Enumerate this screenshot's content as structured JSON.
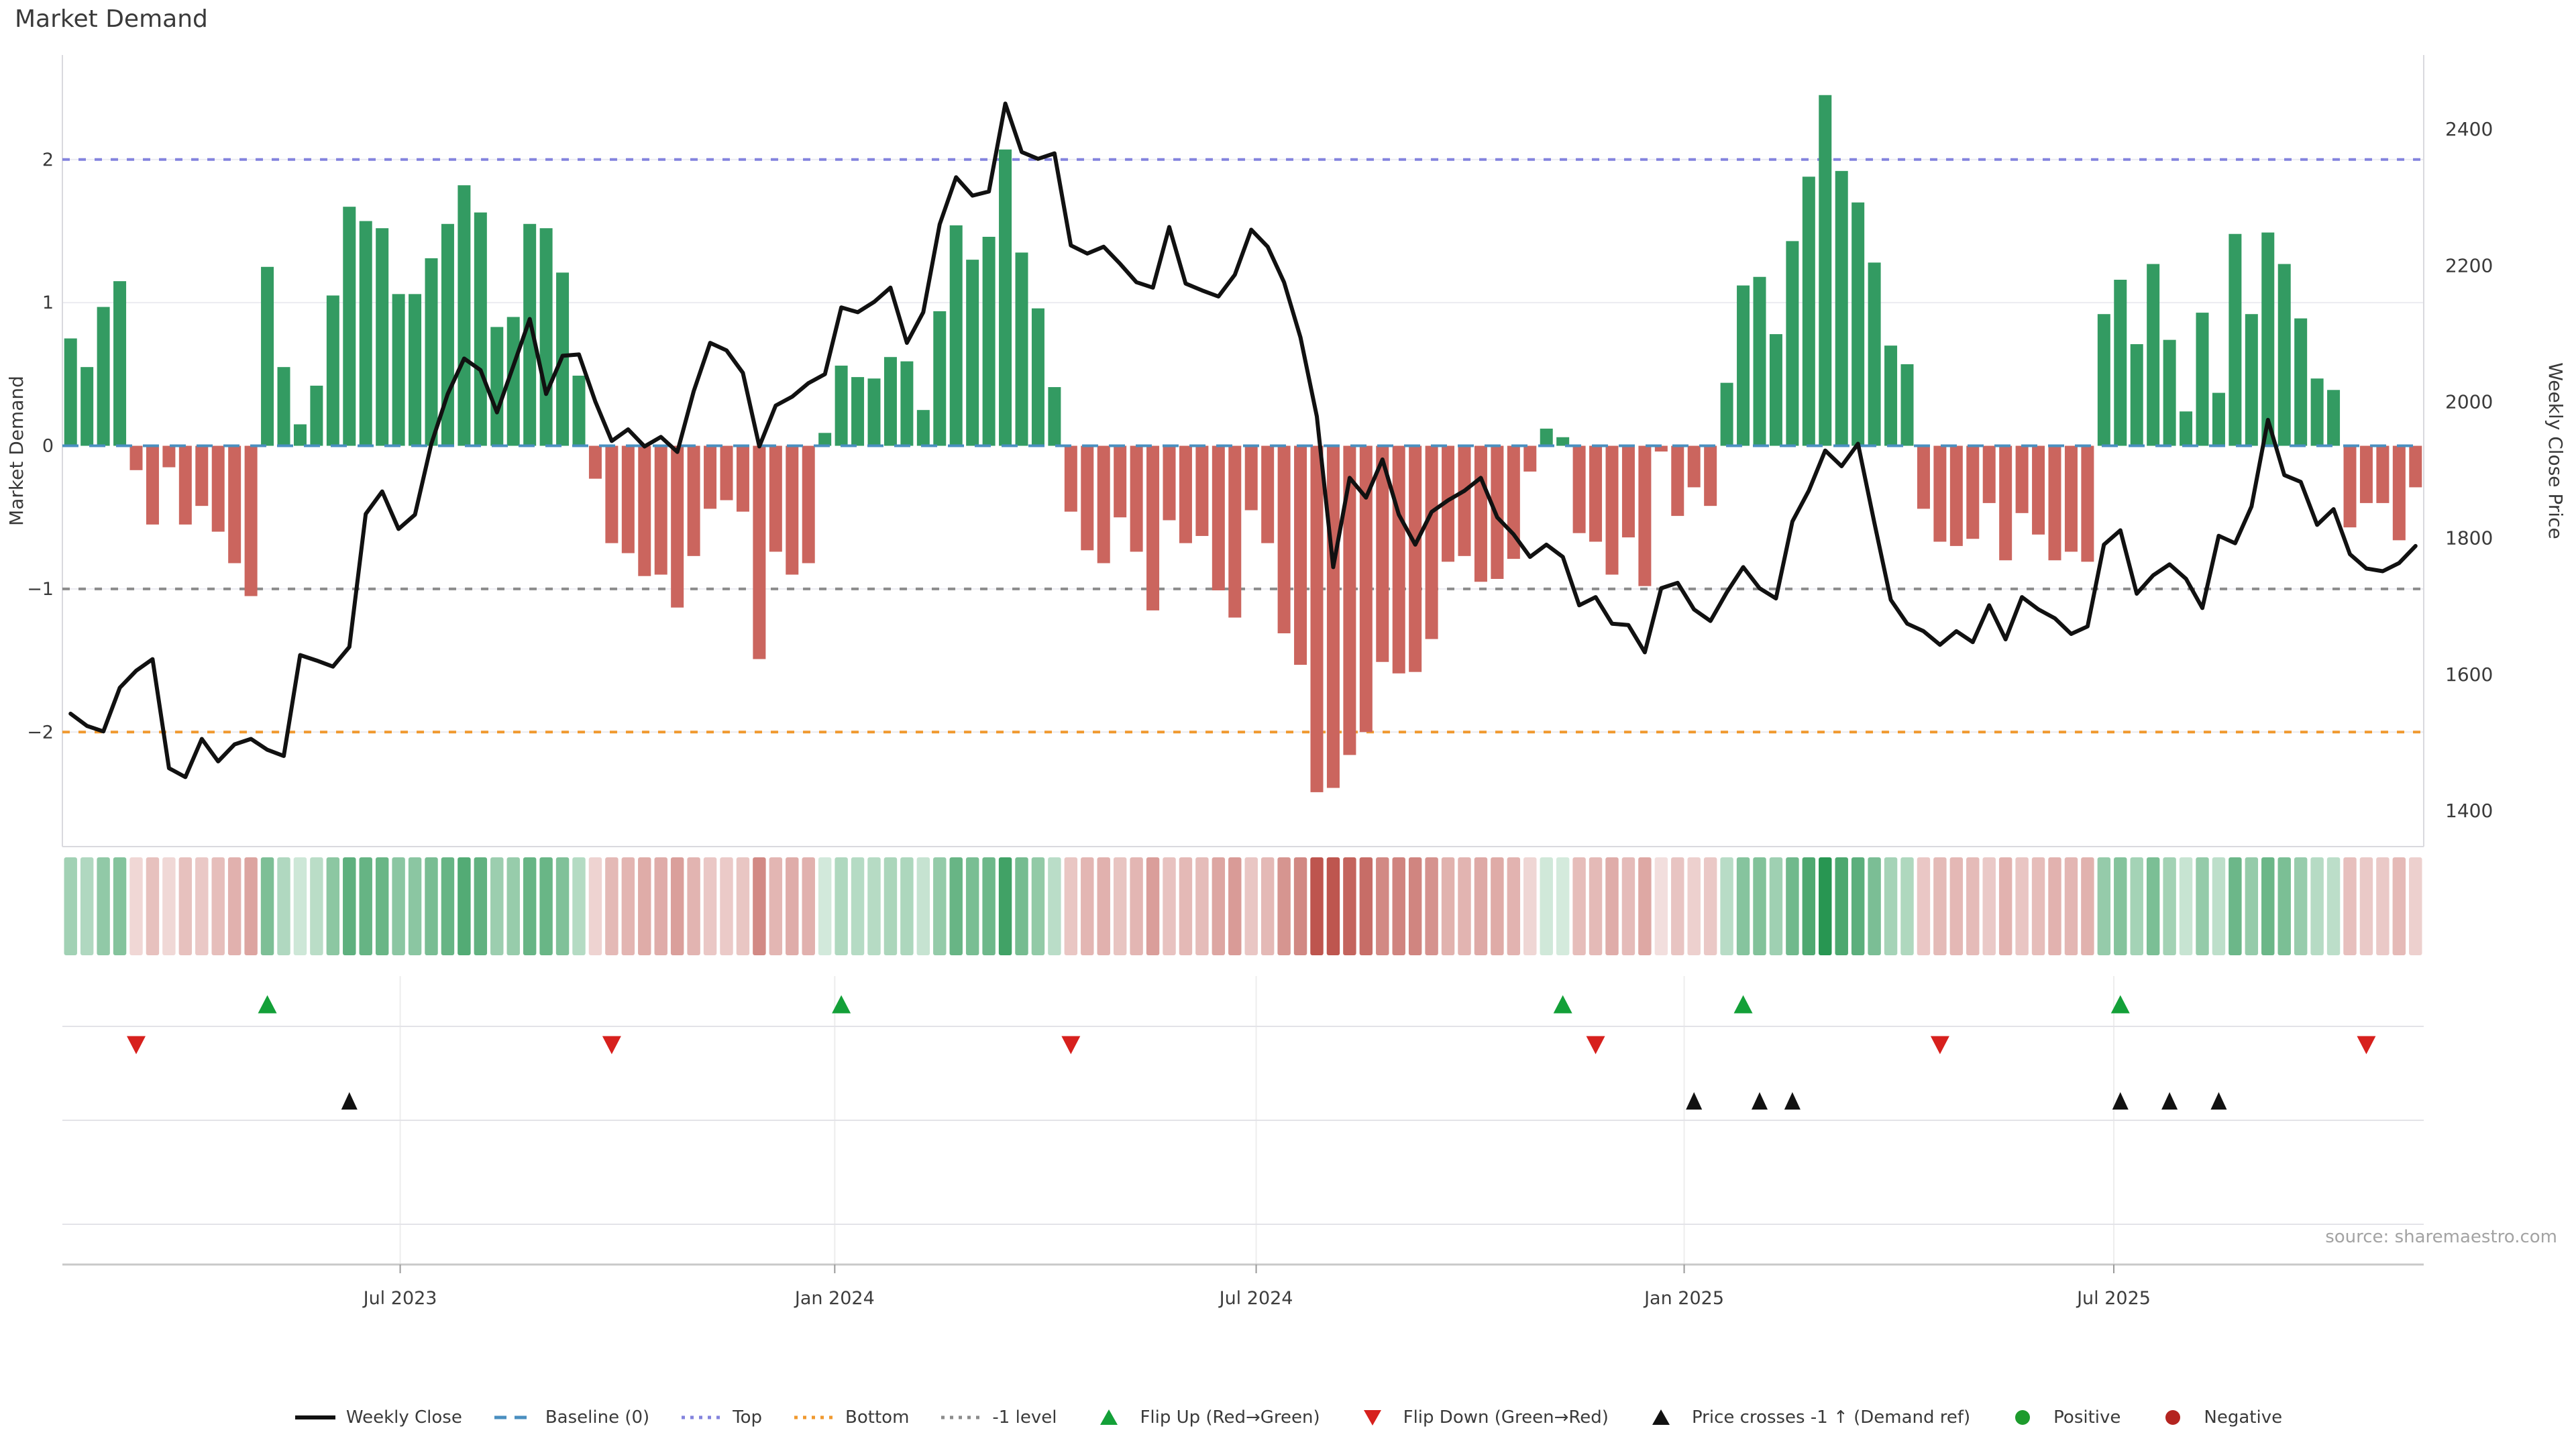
{
  "title": "Market Demand",
  "source_note": "source: sharemaestro.com",
  "axes": {
    "left_label": "Market Demand",
    "right_label": "Weekly Close Price",
    "left_ticks": [
      2,
      1,
      0,
      -1,
      -2
    ],
    "right_ticks": [
      2400,
      2200,
      2000,
      1800,
      1600,
      1400
    ],
    "x_ticks": [
      {
        "label": "Jul 2023",
        "week": 20.6
      },
      {
        "label": "Jan 2024",
        "week": 47.1
      },
      {
        "label": "Jul 2024",
        "week": 72.8
      },
      {
        "label": "Jan 2025",
        "week": 98.9
      },
      {
        "label": "Jul 2025",
        "week": 125.1
      }
    ]
  },
  "reference_lines": {
    "top": {
      "label": "Top",
      "value": 2,
      "color": "#8383de"
    },
    "baseline": {
      "label": "Baseline (0)",
      "value": 0,
      "color": "#4a8fc0"
    },
    "minus1": {
      "label": "-1 level",
      "value": -1,
      "color": "#8c8c8c"
    },
    "bottom": {
      "label": "Bottom",
      "value": -2,
      "color": "#f0992f"
    }
  },
  "colors": {
    "bar_positive": "#339b62",
    "bar_negative": "#cb655e",
    "heat_positive": "#289652",
    "heat_negative": "#be554e",
    "price_line": "#111111",
    "grid": "#ebebf1",
    "spine": "#d9d9de",
    "marker_flip_up": "#13a038",
    "marker_flip_down": "#d7201d",
    "marker_price_cross": "#111111",
    "positive_dot": "#1d9b2d",
    "negative_dot": "#b42420",
    "tick_text": "#3a3a3a",
    "source_text": "#a3a3a3"
  },
  "chart_data": {
    "type": "bar+line+heatmap",
    "x_unit": "week_index",
    "n_weeks": 144,
    "demand_ylim": [
      -2.8,
      2.73
    ],
    "price_ylim": [
      1376,
      2481
    ],
    "series": [
      {
        "name": "Market Demand",
        "type": "bar",
        "values": [
          0.75,
          0.55,
          0.97,
          1.15,
          -0.17,
          -0.55,
          -0.15,
          -0.55,
          -0.42,
          -0.6,
          -0.82,
          -1.05,
          1.25,
          0.55,
          0.15,
          0.42,
          1.05,
          1.67,
          1.57,
          1.52,
          1.06,
          1.06,
          1.31,
          1.55,
          1.82,
          1.63,
          0.83,
          0.9,
          1.55,
          1.52,
          1.21,
          0.49,
          -0.23,
          -0.68,
          -0.75,
          -0.91,
          -0.9,
          -1.13,
          -0.77,
          -0.44,
          -0.38,
          -0.46,
          -1.49,
          -0.74,
          -0.9,
          -0.82,
          0.09,
          0.56,
          0.48,
          0.47,
          0.62,
          0.59,
          0.25,
          0.94,
          1.54,
          1.3,
          1.46,
          2.07,
          1.35,
          0.96,
          0.41,
          -0.46,
          -0.73,
          -0.82,
          -0.5,
          -0.74,
          -1.15,
          -0.52,
          -0.68,
          -0.63,
          -1.01,
          -1.2,
          -0.45,
          -0.68,
          -1.31,
          -1.53,
          -2.42,
          -2.39,
          -2.16,
          -2.0,
          -1.51,
          -1.59,
          -1.58,
          -1.35,
          -0.81,
          -0.77,
          -0.95,
          -0.93,
          -0.79,
          -0.18,
          0.12,
          0.06,
          -0.61,
          -0.67,
          -0.9,
          -0.64,
          -0.98,
          -0.04,
          -0.49,
          -0.29,
          -0.42,
          0.44,
          1.12,
          1.18,
          0.78,
          1.43,
          1.88,
          2.45,
          1.92,
          1.7,
          1.28,
          0.7,
          0.57,
          -0.44,
          -0.67,
          -0.7,
          -0.65,
          -0.4,
          -0.8,
          -0.47,
          -0.62,
          -0.8,
          -0.74,
          -0.81,
          0.92,
          1.16,
          0.71,
          1.27,
          0.74,
          0.24,
          0.93,
          0.37,
          1.48,
          0.92,
          1.49,
          1.27,
          0.89,
          0.47,
          0.39,
          -0.57,
          -0.4,
          -0.4,
          -0.66,
          -0.29
        ]
      },
      {
        "name": "Weekly Close",
        "type": "line",
        "values": [
          1542,
          1524,
          1516,
          1580,
          1605,
          1622,
          1462,
          1449,
          1505,
          1472,
          1497,
          1505,
          1489,
          1480,
          1628,
          1620,
          1611,
          1640,
          1835,
          1868,
          1813,
          1834,
          1938,
          2011,
          2063,
          2046,
          1984,
          2052,
          2121,
          2011,
          2067,
          2069,
          2000,
          1942,
          1959,
          1934,
          1948,
          1926,
          2015,
          2086,
          2075,
          2042,
          1934,
          1994,
          2007,
          2027,
          2040,
          2138,
          2131,
          2146,
          2167,
          2086,
          2131,
          2260,
          2329,
          2302,
          2308,
          2437,
          2366,
          2356,
          2364,
          2229,
          2217,
          2227,
          2202,
          2175,
          2167,
          2256,
          2173,
          2163,
          2154,
          2186,
          2252,
          2227,
          2175,
          2094,
          1978,
          1757,
          1888,
          1859,
          1915,
          1834,
          1790,
          1838,
          1855,
          1869,
          1888,
          1830,
          1805,
          1772,
          1790,
          1772,
          1701,
          1713,
          1674,
          1672,
          1632,
          1726,
          1734,
          1695,
          1678,
          1720,
          1757,
          1726,
          1711,
          1824,
          1869,
          1928,
          1905,
          1938,
          1822,
          1709,
          1674,
          1663,
          1643,
          1663,
          1647,
          1701,
          1651,
          1713,
          1695,
          1682,
          1659,
          1670,
          1790,
          1811,
          1718,
          1745,
          1761,
          1740,
          1697,
          1803,
          1792,
          1846,
          1973,
          1892,
          1882,
          1819,
          1842,
          1776,
          1755,
          1751,
          1763,
          1788
        ]
      }
    ],
    "heatmap_from_demand": true,
    "markers": {
      "flip_up_weeks": [
        13,
        48,
        92,
        103,
        126
      ],
      "flip_down_weeks": [
        5,
        34,
        62,
        94,
        115,
        141
      ],
      "price_cross_weeks": [
        18,
        100,
        104,
        106,
        126,
        129,
        132
      ]
    }
  },
  "legend": {
    "items": [
      {
        "label": "Weekly Close",
        "type": "solid-line",
        "color": "#111111"
      },
      {
        "label": "Baseline (0)",
        "type": "dash",
        "color": "#4a8fc0"
      },
      {
        "label": "Top",
        "type": "dot",
        "color": "#8383de"
      },
      {
        "label": "Bottom",
        "type": "dot",
        "color": "#f0992f"
      },
      {
        "label": "-1 level",
        "type": "dot",
        "color": "#8c8c8c"
      },
      {
        "label": "Flip Up (Red→Green)",
        "type": "tri-up",
        "color": "#13a038"
      },
      {
        "label": "Flip Down (Green→Red)",
        "type": "tri-down",
        "color": "#d7201d"
      },
      {
        "label": "Price crosses -1 ↑ (Demand ref)",
        "type": "tri-up",
        "color": "#111111"
      },
      {
        "label": "Positive",
        "type": "circle",
        "color": "#1d9b2d"
      },
      {
        "label": "Negative",
        "type": "circle",
        "color": "#b42420"
      }
    ]
  }
}
